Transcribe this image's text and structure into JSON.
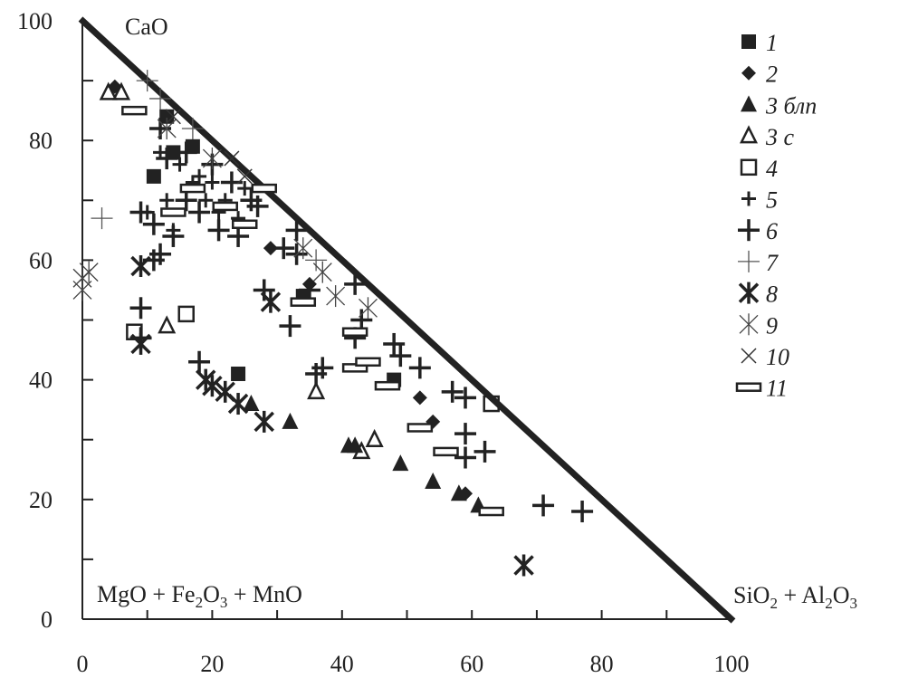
{
  "chart_data": {
    "type": "scatter",
    "title": "",
    "corner_labels": {
      "top": "CaO",
      "bottom_left": "MgO + Fe2O3 + MnO",
      "bottom_right": "SiO2 + Al2O3"
    },
    "xlabel": "",
    "ylabel": "",
    "xlim": [
      0,
      100
    ],
    "ylim": [
      0,
      100
    ],
    "x_ticks": [
      "0",
      "20",
      "40",
      "60",
      "80",
      "100"
    ],
    "y_ticks": [
      "0",
      "20",
      "40",
      "60",
      "80",
      "100"
    ],
    "grid": false,
    "legend_position": "right",
    "boundary_line": {
      "from": [
        0,
        100
      ],
      "to": [
        100,
        0
      ]
    },
    "series": [
      {
        "name": "1",
        "marker": "filled-square",
        "points": [
          [
            11,
            74
          ],
          [
            13,
            84
          ],
          [
            17,
            79
          ],
          [
            24,
            41
          ],
          [
            34,
            54
          ],
          [
            48,
            40
          ],
          [
            14,
            78
          ]
        ]
      },
      {
        "name": "2",
        "marker": "filled-diamond",
        "points": [
          [
            5,
            89
          ],
          [
            29,
            62
          ],
          [
            52,
            37
          ],
          [
            54,
            33
          ],
          [
            59,
            21
          ],
          [
            35,
            56
          ]
        ]
      },
      {
        "name": "3 блп",
        "marker": "filled-triangle",
        "points": [
          [
            26,
            36
          ],
          [
            32,
            33
          ],
          [
            41,
            29
          ],
          [
            42,
            29
          ],
          [
            49,
            26
          ],
          [
            54,
            23
          ],
          [
            58,
            21
          ],
          [
            61,
            19
          ]
        ]
      },
      {
        "name": "3 с",
        "marker": "open-triangle",
        "points": [
          [
            4,
            88
          ],
          [
            6,
            88
          ],
          [
            13,
            49
          ],
          [
            36,
            38
          ],
          [
            43,
            28
          ],
          [
            45,
            30
          ]
        ]
      },
      {
        "name": "4",
        "marker": "open-square",
        "points": [
          [
            16,
            51
          ],
          [
            63,
            36
          ],
          [
            8,
            48
          ]
        ]
      },
      {
        "name": "5",
        "marker": "plus",
        "points": [
          [
            10,
            68
          ],
          [
            12,
            78
          ],
          [
            15,
            76
          ],
          [
            18,
            74
          ],
          [
            20,
            73
          ],
          [
            22,
            70
          ],
          [
            25,
            72
          ],
          [
            14,
            65
          ],
          [
            19,
            70
          ],
          [
            21,
            68
          ],
          [
            17,
            73
          ],
          [
            13,
            70
          ],
          [
            24,
            67
          ]
        ]
      },
      {
        "name": "6",
        "marker": "bold-plus",
        "points": [
          [
            9,
            68
          ],
          [
            11,
            66
          ],
          [
            12,
            61
          ],
          [
            14,
            64
          ],
          [
            16,
            70
          ],
          [
            18,
            68
          ],
          [
            21,
            65
          ],
          [
            24,
            64
          ],
          [
            26,
            70
          ],
          [
            27,
            69
          ],
          [
            28,
            55
          ],
          [
            31,
            62
          ],
          [
            32,
            49
          ],
          [
            33,
            61
          ],
          [
            35,
            55
          ],
          [
            36,
            41
          ],
          [
            42,
            56
          ],
          [
            42,
            47
          ],
          [
            43,
            50
          ],
          [
            48,
            46
          ],
          [
            49,
            44
          ],
          [
            52,
            42
          ],
          [
            57,
            38
          ],
          [
            59,
            37
          ],
          [
            59,
            31
          ],
          [
            59,
            27
          ],
          [
            62,
            28
          ],
          [
            71,
            19
          ],
          [
            77,
            18
          ],
          [
            9,
            52
          ],
          [
            9,
            47
          ],
          [
            18,
            43
          ],
          [
            11,
            60
          ],
          [
            13,
            77
          ],
          [
            16,
            78
          ],
          [
            20,
            76
          ],
          [
            12,
            82
          ],
          [
            33,
            65
          ],
          [
            37,
            42
          ],
          [
            23,
            73
          ]
        ]
      },
      {
        "name": "7",
        "marker": "thin-plus",
        "points": [
          [
            3,
            67
          ],
          [
            12,
            87
          ],
          [
            17,
            82
          ],
          [
            36,
            60
          ],
          [
            10,
            90
          ]
        ]
      },
      {
        "name": "8",
        "marker": "bold-asterisk",
        "points": [
          [
            9,
            59
          ],
          [
            9,
            46
          ],
          [
            19,
            40
          ],
          [
            20,
            39
          ],
          [
            22,
            38
          ],
          [
            24,
            36
          ],
          [
            28,
            33
          ],
          [
            68,
            9
          ],
          [
            29,
            53
          ]
        ]
      },
      {
        "name": "9",
        "marker": "asterisk",
        "points": [
          [
            0,
            57
          ],
          [
            1,
            58
          ],
          [
            0,
            55
          ],
          [
            13,
            82
          ],
          [
            20,
            77
          ],
          [
            34,
            62
          ],
          [
            37,
            58
          ],
          [
            39,
            54
          ],
          [
            44,
            52
          ]
        ]
      },
      {
        "name": "10",
        "marker": "cross",
        "points": [
          [
            14,
            84
          ],
          [
            23,
            77
          ],
          [
            25,
            74
          ]
        ]
      },
      {
        "name": "11",
        "marker": "open-rectangle",
        "points": [
          [
            8,
            85
          ],
          [
            14,
            68
          ],
          [
            22,
            69
          ],
          [
            25,
            66
          ],
          [
            34,
            53
          ],
          [
            42,
            42
          ],
          [
            44,
            43
          ],
          [
            47,
            39
          ],
          [
            52,
            32
          ],
          [
            56,
            28
          ],
          [
            63,
            18
          ],
          [
            17,
            72
          ],
          [
            28,
            72
          ],
          [
            42,
            48
          ]
        ]
      }
    ]
  }
}
